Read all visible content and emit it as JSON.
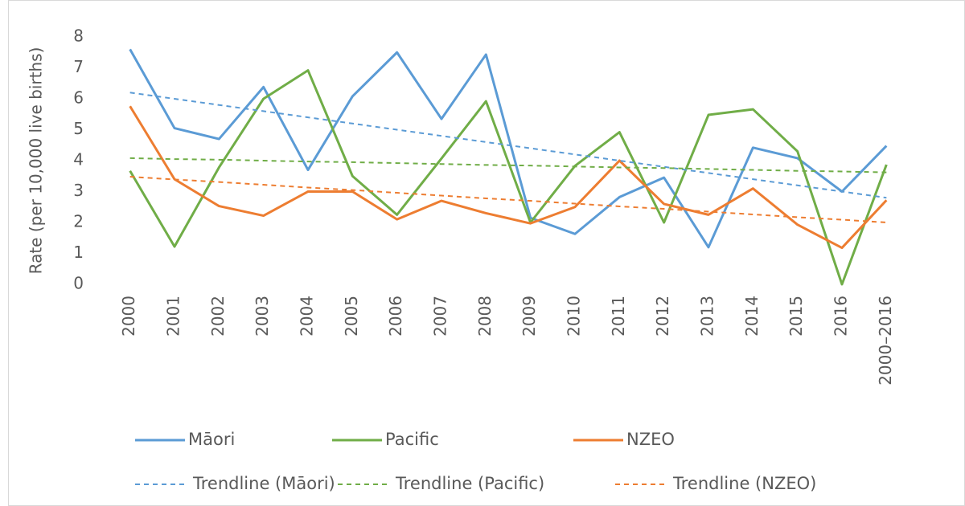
{
  "chart_data": {
    "type": "line",
    "y_label": "Rate (per 10,000 live births)",
    "categories": [
      "2000",
      "2001",
      "2002",
      "2003",
      "2004",
      "2005",
      "2006",
      "2007",
      "2008",
      "2009",
      "2010",
      "2011",
      "2012",
      "2013",
      "2014",
      "2015",
      "2016",
      "2000–2016"
    ],
    "ylim": [
      0,
      8
    ],
    "yticks": [
      0,
      1,
      2,
      3,
      4,
      5,
      6,
      7,
      8
    ],
    "grid": false,
    "series": [
      {
        "name": "Māori",
        "color": "#5b9bd5",
        "values": [
          7.6,
          5.05,
          4.7,
          6.38,
          3.7,
          6.08,
          7.5,
          5.35,
          7.43,
          2.15,
          1.63,
          2.82,
          3.45,
          1.2,
          4.42,
          4.08,
          3.0,
          4.48
        ]
      },
      {
        "name": "Pacific",
        "color": "#70ad47",
        "values": [
          3.67,
          1.22,
          3.78,
          6.0,
          6.92,
          3.5,
          2.25,
          4.07,
          5.92,
          2.0,
          3.83,
          4.92,
          2.0,
          5.48,
          5.66,
          4.3,
          0,
          3.87
        ]
      },
      {
        "name": "NZEO",
        "color": "#ed7d31",
        "values": [
          5.76,
          3.4,
          2.53,
          2.22,
          3.0,
          3.0,
          2.1,
          2.7,
          2.3,
          1.97,
          2.5,
          4.0,
          2.6,
          2.25,
          3.1,
          1.93,
          1.18,
          2.72
        ]
      },
      {
        "name": "Trendline (Māori)",
        "color": "#5b9bd5",
        "dashed": true,
        "values": [
          6.2,
          6.0,
          5.8,
          5.6,
          5.4,
          5.2,
          5.0,
          4.8,
          4.6,
          4.4,
          4.2,
          4.0,
          3.8,
          3.6,
          3.4,
          3.2,
          3.0,
          2.8
        ]
      },
      {
        "name": "Trendline (Pacific)",
        "color": "#70ad47",
        "dashed": true,
        "values": [
          4.08,
          4.05,
          4.03,
          4.0,
          3.97,
          3.95,
          3.92,
          3.89,
          3.86,
          3.84,
          3.81,
          3.78,
          3.76,
          3.73,
          3.7,
          3.67,
          3.65,
          3.62
        ]
      },
      {
        "name": "Trendline (NZEO)",
        "color": "#ed7d31",
        "dashed": true,
        "values": [
          3.48,
          3.39,
          3.31,
          3.22,
          3.13,
          3.05,
          2.96,
          2.87,
          2.78,
          2.7,
          2.61,
          2.52,
          2.44,
          2.35,
          2.26,
          2.17,
          2.09,
          2.0
        ]
      }
    ]
  }
}
